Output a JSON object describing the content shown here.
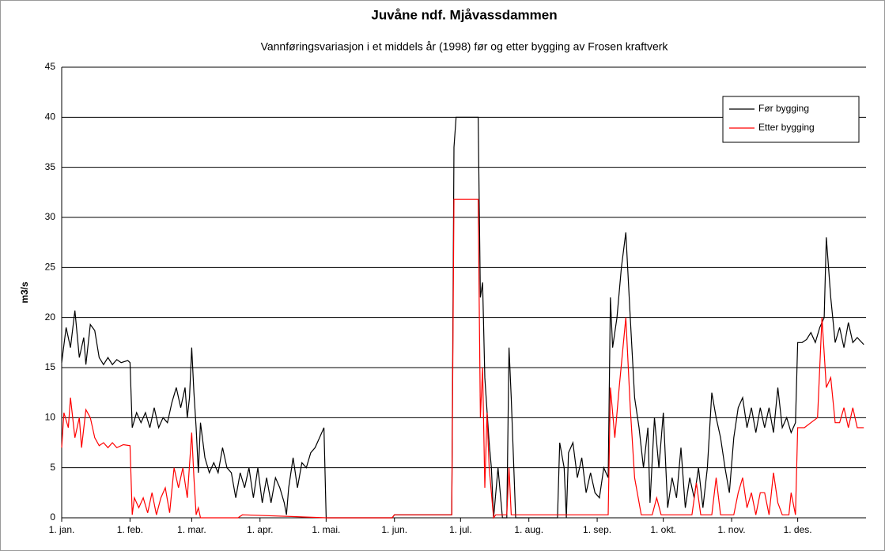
{
  "chart_data": {
    "type": "line",
    "title": "Juvåne ndf. Mjåvassdammen",
    "subtitle": "Vannføringsvariasjon  i et middels år (1998) før og etter bygging av Frosen kraftverk",
    "ylabel": "m3/s",
    "xlim": [
      0,
      365
    ],
    "xticks": [
      {
        "value": 0,
        "label": "1. jan."
      },
      {
        "value": 31,
        "label": "1. feb."
      },
      {
        "value": 59,
        "label": "1. mar."
      },
      {
        "value": 90,
        "label": "1. apr."
      },
      {
        "value": 120,
        "label": "1. mai."
      },
      {
        "value": 151,
        "label": "1. jun."
      },
      {
        "value": 181,
        "label": "1. jul."
      },
      {
        "value": 212,
        "label": "1. aug."
      },
      {
        "value": 243,
        "label": "1. sep."
      },
      {
        "value": 273,
        "label": "1. okt."
      },
      {
        "value": 304,
        "label": "1. nov."
      },
      {
        "value": 334,
        "label": "1. des."
      }
    ],
    "ylim": [
      0,
      45
    ],
    "yticks": [
      0,
      5,
      10,
      15,
      20,
      25,
      30,
      35,
      40,
      45
    ],
    "grid": true,
    "legend": "upper right",
    "series": [
      {
        "name": "Før bygging",
        "color": "#000000",
        "x": [
          0,
          2,
          4,
          6,
          8,
          10,
          11,
          13,
          15,
          17,
          19,
          21,
          23,
          25,
          27,
          30,
          31,
          32,
          34,
          36,
          38,
          40,
          42,
          44,
          46,
          48,
          50,
          52,
          54,
          56,
          57,
          58,
          59,
          60,
          61,
          62,
          63,
          65,
          67,
          69,
          71,
          73,
          75,
          77,
          79,
          81,
          83,
          85,
          87,
          89,
          91,
          93,
          95,
          97,
          99,
          101,
          102,
          103,
          105,
          107,
          109,
          111,
          113,
          115,
          117,
          119,
          120,
          150,
          151,
          177,
          178,
          179,
          189,
          190,
          191,
          192,
          194,
          195,
          196,
          198,
          200,
          202,
          203,
          204,
          205,
          206,
          225,
          226,
          228,
          229,
          230,
          232,
          234,
          236,
          238,
          240,
          242,
          244,
          246,
          248,
          249,
          250,
          252,
          254,
          256,
          258,
          260,
          262,
          264,
          266,
          267,
          269,
          271,
          273,
          275,
          277,
          279,
          281,
          283,
          285,
          287,
          289,
          291,
          293,
          295,
          297,
          299,
          301,
          303,
          305,
          307,
          309,
          311,
          313,
          315,
          317,
          319,
          321,
          323,
          325,
          327,
          329,
          331,
          333,
          334,
          336,
          338,
          340,
          342,
          344,
          346,
          347,
          349,
          351,
          353,
          355,
          357,
          359,
          361,
          364
        ],
        "values": [
          15.5,
          19,
          17,
          20.7,
          16,
          18,
          15.3,
          19.3,
          18.7,
          16,
          15.3,
          16,
          15.3,
          15.8,
          15.5,
          15.7,
          15.5,
          9,
          10.5,
          9.5,
          10.5,
          9,
          11,
          9,
          10,
          9.5,
          11.5,
          13,
          11,
          13,
          10,
          12,
          17,
          12.5,
          9,
          4.5,
          9.5,
          6,
          4.5,
          5.5,
          4.5,
          7,
          5,
          4.5,
          2,
          4.5,
          3,
          5,
          2,
          5,
          1.5,
          4,
          1.5,
          4,
          3,
          1.5,
          0.3,
          3,
          6,
          3,
          5.5,
          5,
          6.5,
          7,
          8,
          9,
          0,
          0,
          0.3,
          0.3,
          37,
          40,
          40,
          22,
          23.5,
          14,
          7.5,
          5,
          0,
          5,
          0,
          0,
          17,
          12,
          6,
          0,
          0,
          7.5,
          5,
          0,
          6.5,
          7.5,
          4,
          6,
          2.5,
          4.5,
          2.5,
          2,
          5,
          4,
          22,
          17,
          20,
          25,
          28.5,
          20,
          12,
          9,
          5,
          9,
          1.5,
          10,
          5,
          10.5,
          1,
          4,
          2,
          7,
          1,
          4,
          2,
          5,
          1,
          5,
          12.5,
          10,
          8,
          5,
          2.5,
          8,
          11,
          12,
          9,
          11,
          8.5,
          11,
          9,
          11,
          8.5,
          13,
          9,
          10,
          8.5,
          9.5,
          17.5,
          17.5,
          17.8,
          18.5,
          17.5,
          19,
          20,
          28,
          22,
          17.5,
          19,
          17,
          19.5,
          17.5,
          18,
          17.3
        ]
      },
      {
        "name": "Etter bygging",
        "color": "#ff0000",
        "x": [
          0,
          1,
          3,
          4,
          6,
          8,
          9,
          11,
          13,
          15,
          17,
          19,
          21,
          23,
          25,
          28,
          31,
          32,
          33,
          35,
          37,
          39,
          41,
          43,
          45,
          47,
          49,
          51,
          53,
          55,
          57,
          59,
          60,
          61,
          62,
          63,
          80,
          82,
          120,
          150,
          151,
          177,
          178,
          189,
          190,
          191,
          192,
          193,
          194,
          196,
          197,
          202,
          203,
          204,
          248,
          249,
          251,
          253,
          256,
          258,
          260,
          263,
          268,
          270,
          272,
          286,
          288,
          290,
          295,
          297,
          299,
          305,
          307,
          309,
          311,
          313,
          315,
          317,
          319,
          321,
          323,
          325,
          327,
          330,
          331,
          333,
          334,
          337,
          340,
          343,
          345,
          347,
          349,
          351,
          353,
          355,
          357,
          359,
          361,
          364
        ],
        "values": [
          7,
          10.5,
          9,
          12,
          8,
          10,
          7,
          10.8,
          10,
          8,
          7.2,
          7.5,
          7,
          7.5,
          7,
          7.3,
          7.2,
          0.3,
          2,
          1,
          2,
          0.5,
          2.5,
          0.3,
          2,
          3,
          0.5,
          5,
          3,
          5,
          2,
          8.5,
          4,
          0.3,
          1,
          0,
          0,
          0.3,
          0,
          0,
          0.3,
          0.3,
          31.8,
          31.8,
          10,
          15,
          3,
          10.5,
          5,
          0,
          0.3,
          0.3,
          5,
          0.3,
          0.3,
          13,
          8,
          13,
          20,
          11,
          4,
          0.3,
          0.3,
          2,
          0.3,
          0.3,
          3.5,
          0.3,
          0.3,
          4,
          0.3,
          0.3,
          2.5,
          4,
          1,
          2.5,
          0.3,
          2.5,
          2.5,
          0.3,
          4.5,
          1.5,
          0.3,
          0.3,
          2.5,
          0.3,
          9,
          9,
          9.5,
          10,
          20,
          13,
          14,
          9.5,
          9.5,
          11,
          9,
          11,
          9,
          9
        ]
      }
    ]
  }
}
